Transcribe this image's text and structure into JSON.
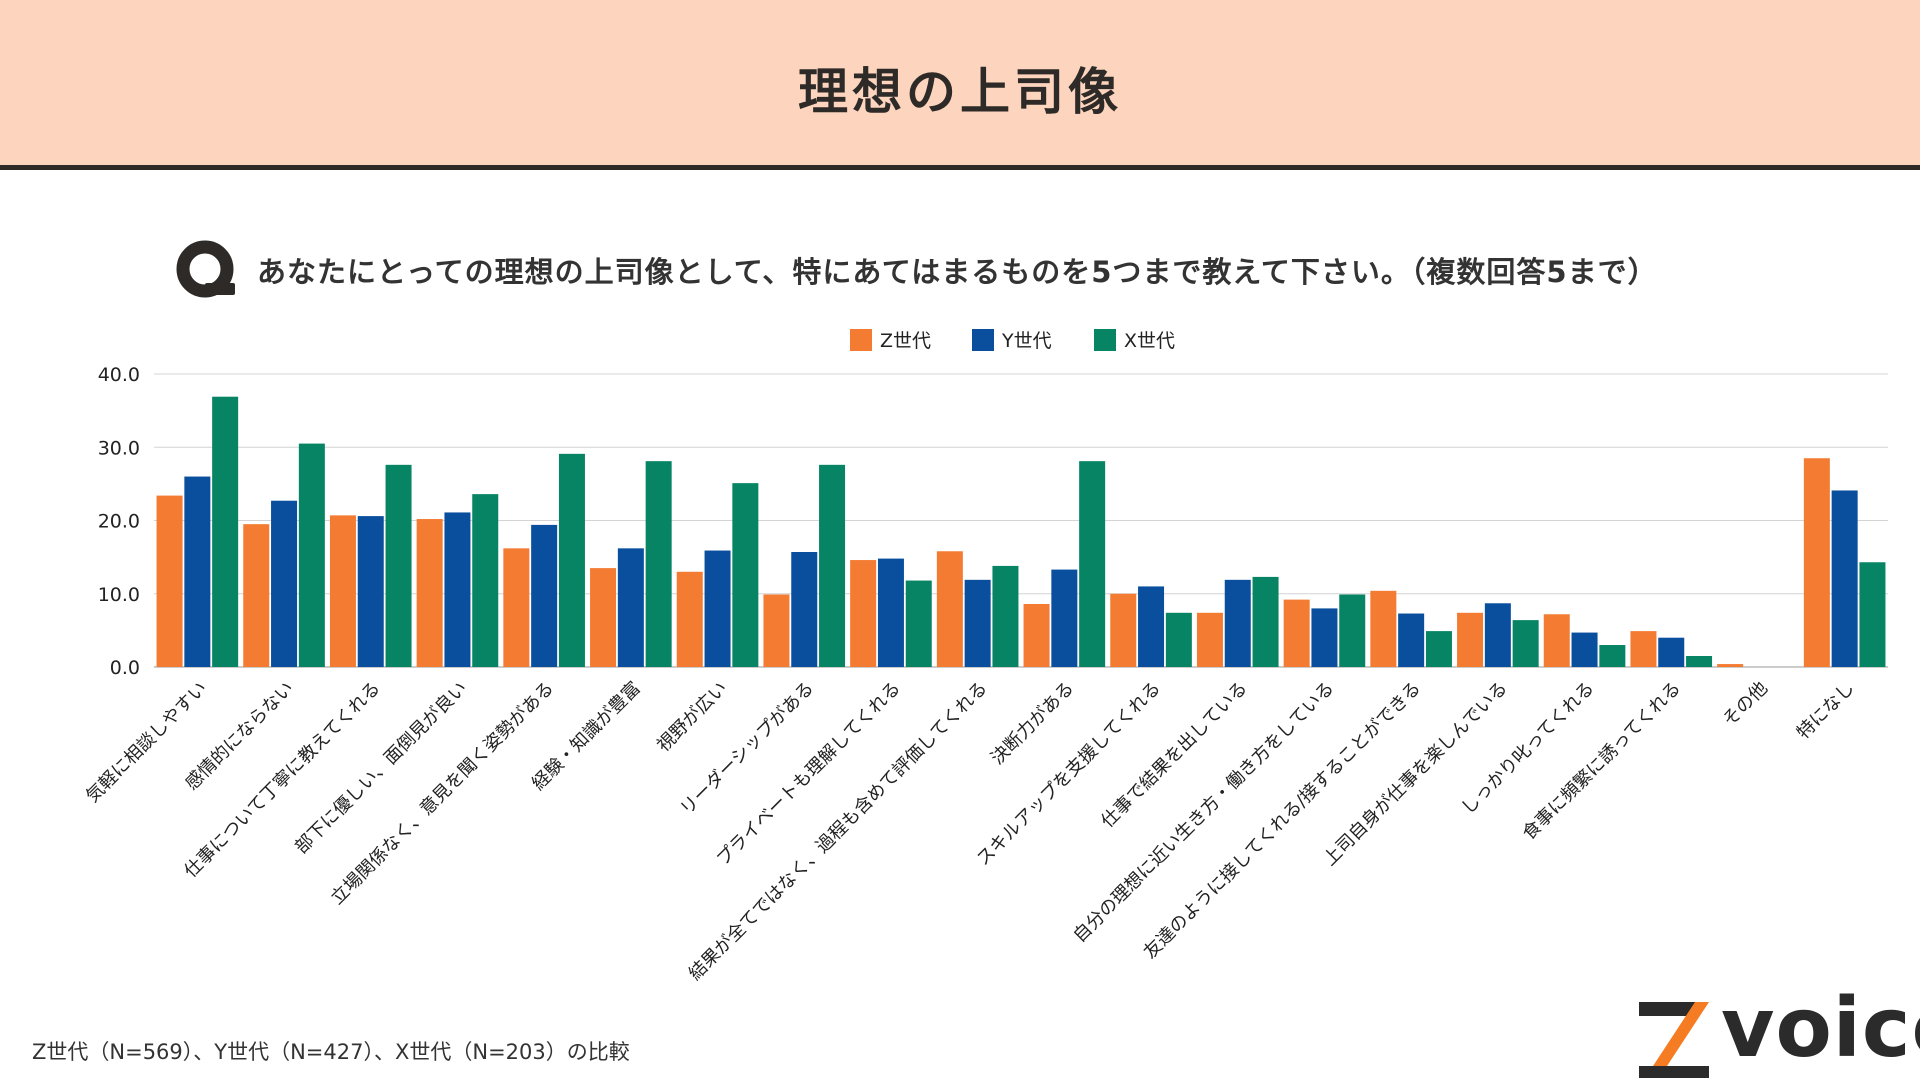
{
  "header": {
    "title": "理想の上司像"
  },
  "question": {
    "text": "あなたにとっての理想の上司像として、特にあてはまるものを5つまで教えて下さい。（複数回答5まで）"
  },
  "footnote": "Z世代（N=569）、Y世代（N=427）、X世代（N=203）の比較",
  "logo": {
    "text": "voice"
  },
  "colors": {
    "header_bg": "#fdd5be",
    "z": "#f47b32",
    "y": "#0a4f9d",
    "x": "#068464",
    "logo_orange": "#f57c22"
  },
  "chart_data": {
    "type": "bar",
    "title": "",
    "xlabel": "",
    "ylabel": "",
    "ylim": [
      0,
      40
    ],
    "yticks": [
      "0.0",
      "10.0",
      "20.0",
      "30.0",
      "40.0"
    ],
    "grid": true,
    "legend_position": "top-center",
    "categories": [
      "気軽に相談しやすい",
      "感情的にならない",
      "仕事について丁寧に教えてくれる",
      "部下に優しい、面倒見が良い",
      "立場関係なく、意見を聞く姿勢がある",
      "経験・知識が豊富",
      "視野が広い",
      "リーダーシップがある",
      "プライベートも理解してくれる",
      "結果が全てではなく、過程も含めて評価してくれる",
      "決断力がある",
      "スキルアップを支援してくれる",
      "仕事で結果を出している",
      "自分の理想に近い生き方・働き方をしている",
      "友達のように接してくれる/接することができる",
      "上司自身が仕事を楽しんでいる",
      "しっかり叱ってくれる",
      "食事に頻繁に誘ってくれる",
      "その他",
      "特になし"
    ],
    "series": [
      {
        "name": "Z世代",
        "color": "#f47b32",
        "values": [
          23.4,
          19.5,
          20.7,
          20.2,
          16.2,
          13.5,
          13.0,
          9.9,
          14.6,
          15.8,
          8.6,
          10.0,
          7.4,
          9.2,
          10.4,
          7.4,
          7.2,
          4.9,
          0.4,
          28.5
        ]
      },
      {
        "name": "Y世代",
        "color": "#0a4f9d",
        "values": [
          26.0,
          22.7,
          20.6,
          21.1,
          19.4,
          16.2,
          15.9,
          15.7,
          14.8,
          11.9,
          13.3,
          11.0,
          11.9,
          8.0,
          7.3,
          8.7,
          4.7,
          4.0,
          0.0,
          24.1
        ]
      },
      {
        "name": "X世代",
        "color": "#068464",
        "values": [
          36.9,
          30.5,
          27.6,
          23.6,
          29.1,
          28.1,
          25.1,
          27.6,
          11.8,
          13.8,
          28.1,
          7.4,
          12.3,
          9.9,
          4.9,
          6.4,
          3.0,
          1.5,
          0.0,
          14.3
        ]
      }
    ]
  }
}
